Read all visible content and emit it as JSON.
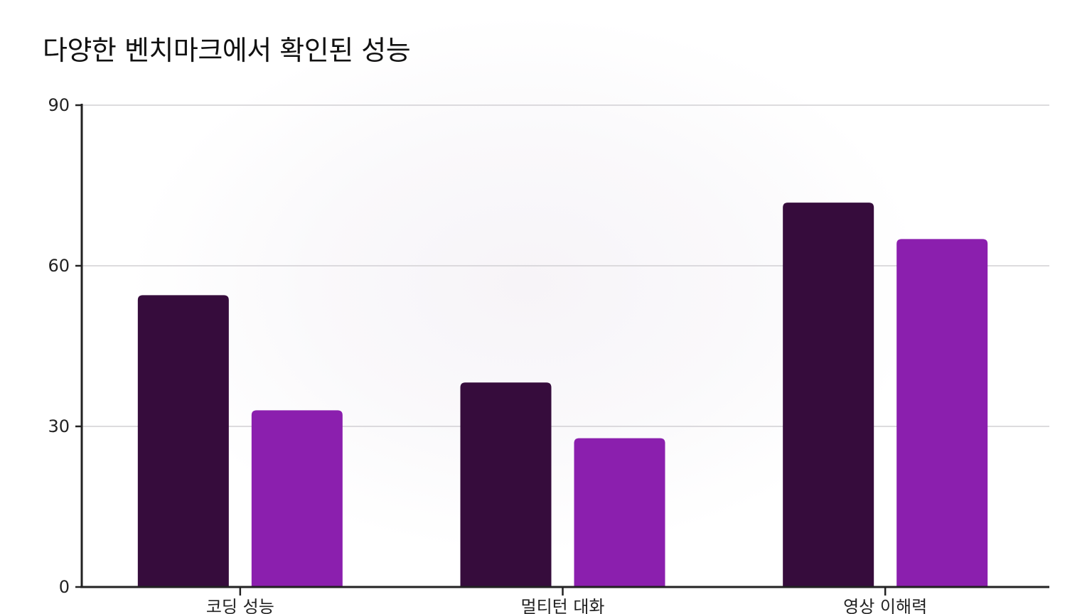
{
  "chart_data": {
    "type": "bar",
    "title": "다양한 벤치마크에서 확인된 성능",
    "categories": [
      "코딩 성능",
      "멀티턴 대화",
      "영상 이해력"
    ],
    "series": [
      {
        "values": [
          54.5,
          38.2,
          71.8
        ],
        "color": "#360c3c"
      },
      {
        "values": [
          33.0,
          27.8,
          65.0
        ],
        "color": "#8b1fae"
      }
    ],
    "ylim": [
      0,
      90
    ],
    "yticks": [
      0,
      30,
      60,
      90
    ],
    "grid": true,
    "legend": "none"
  }
}
